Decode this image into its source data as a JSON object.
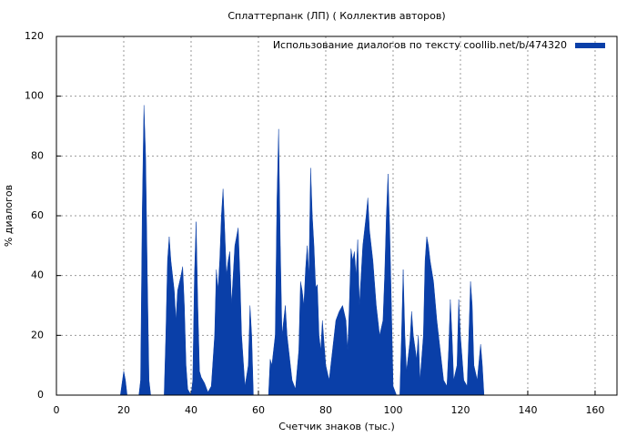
{
  "chart_data": {
    "type": "area",
    "title": "Сплаттерпанк (ЛП) ( Коллектив авторов)",
    "x_label": "Счетчик знаков (тыс.)",
    "y_label": "% диалогов",
    "xlim": [
      0,
      166.5
    ],
    "ylim": [
      0,
      120
    ],
    "xticks": [
      0,
      20,
      40,
      60,
      80,
      100,
      120,
      140,
      160
    ],
    "yticks": [
      0,
      20,
      40,
      60,
      80,
      100,
      120
    ],
    "grid": true,
    "legend": "top-right",
    "x": [
      19,
      19.5,
      20,
      20.5,
      21,
      24.5,
      25,
      25.5,
      26,
      26.5,
      27,
      27.5,
      28,
      32,
      32.5,
      33,
      33.5,
      34,
      35,
      35.5,
      36,
      37,
      37.5,
      38,
      38.5,
      39,
      40,
      40.5,
      41,
      41.5,
      42,
      42.5,
      43,
      44,
      45,
      46,
      47,
      47.5,
      48,
      48.5,
      49,
      49.5,
      50,
      50.5,
      51,
      51.5,
      52,
      52.5,
      53,
      53.5,
      54,
      54.5,
      55,
      56,
      57,
      57.5,
      58,
      58.5,
      63,
      63.5,
      64,
      65,
      65.5,
      66,
      66.5,
      67,
      67.5,
      68,
      68.5,
      69,
      70,
      71,
      72,
      72.5,
      73,
      73.5,
      74,
      74.5,
      75,
      75.5,
      76,
      76.5,
      77,
      77.5,
      78,
      78.5,
      79,
      80,
      81,
      82,
      83,
      84,
      85,
      86,
      86.5,
      87,
      87.5,
      88,
      88.5,
      89,
      89.5,
      90,
      90.5,
      91,
      92,
      92.5,
      93,
      94,
      95,
      96,
      97,
      97.5,
      98,
      98.5,
      99,
      99.5,
      100,
      101,
      102,
      102.5,
      103,
      103.5,
      104,
      105,
      105.5,
      106,
      107,
      107.5,
      108,
      109,
      109.5,
      110,
      110.5,
      111,
      112,
      113,
      114,
      115,
      116,
      116.5,
      117,
      117.5,
      118,
      119,
      119.5,
      120,
      121,
      122,
      122.5,
      123,
      123.5,
      124,
      125,
      126,
      126.5,
      127
    ],
    "series": [
      {
        "name": "Использование диалогов по тексту  coollib.net/b/474320",
        "color": "#0a3fa8",
        "values": [
          0,
          4,
          8,
          5,
          0,
          0,
          5,
          62,
          97,
          80,
          40,
          5,
          0,
          0,
          20,
          45,
          53,
          45,
          35,
          25,
          35,
          40,
          43,
          30,
          10,
          2,
          0,
          5,
          40,
          58,
          30,
          8,
          6,
          4,
          1,
          3,
          20,
          42,
          35,
          45,
          60,
          69,
          55,
          40,
          45,
          48,
          30,
          40,
          50,
          53,
          56,
          40,
          20,
          3,
          10,
          30,
          20,
          0,
          0,
          12,
          10,
          20,
          65,
          89,
          50,
          20,
          25,
          30,
          20,
          15,
          5,
          2,
          15,
          38,
          35,
          30,
          42,
          50,
          40,
          76,
          60,
          50,
          36,
          37,
          20,
          15,
          25,
          10,
          5,
          15,
          25,
          28,
          30,
          25,
          15,
          30,
          49,
          45,
          48,
          40,
          52,
          30,
          40,
          50,
          60,
          66,
          55,
          45,
          30,
          20,
          25,
          40,
          60,
          74,
          55,
          30,
          3,
          0,
          0,
          20,
          42,
          20,
          8,
          18,
          28,
          20,
          12,
          20,
          5,
          20,
          45,
          53,
          50,
          45,
          38,
          25,
          15,
          5,
          3,
          15,
          32,
          20,
          5,
          10,
          32,
          20,
          5,
          3,
          20,
          38,
          30,
          10,
          5,
          17,
          10,
          0
        ]
      }
    ]
  }
}
